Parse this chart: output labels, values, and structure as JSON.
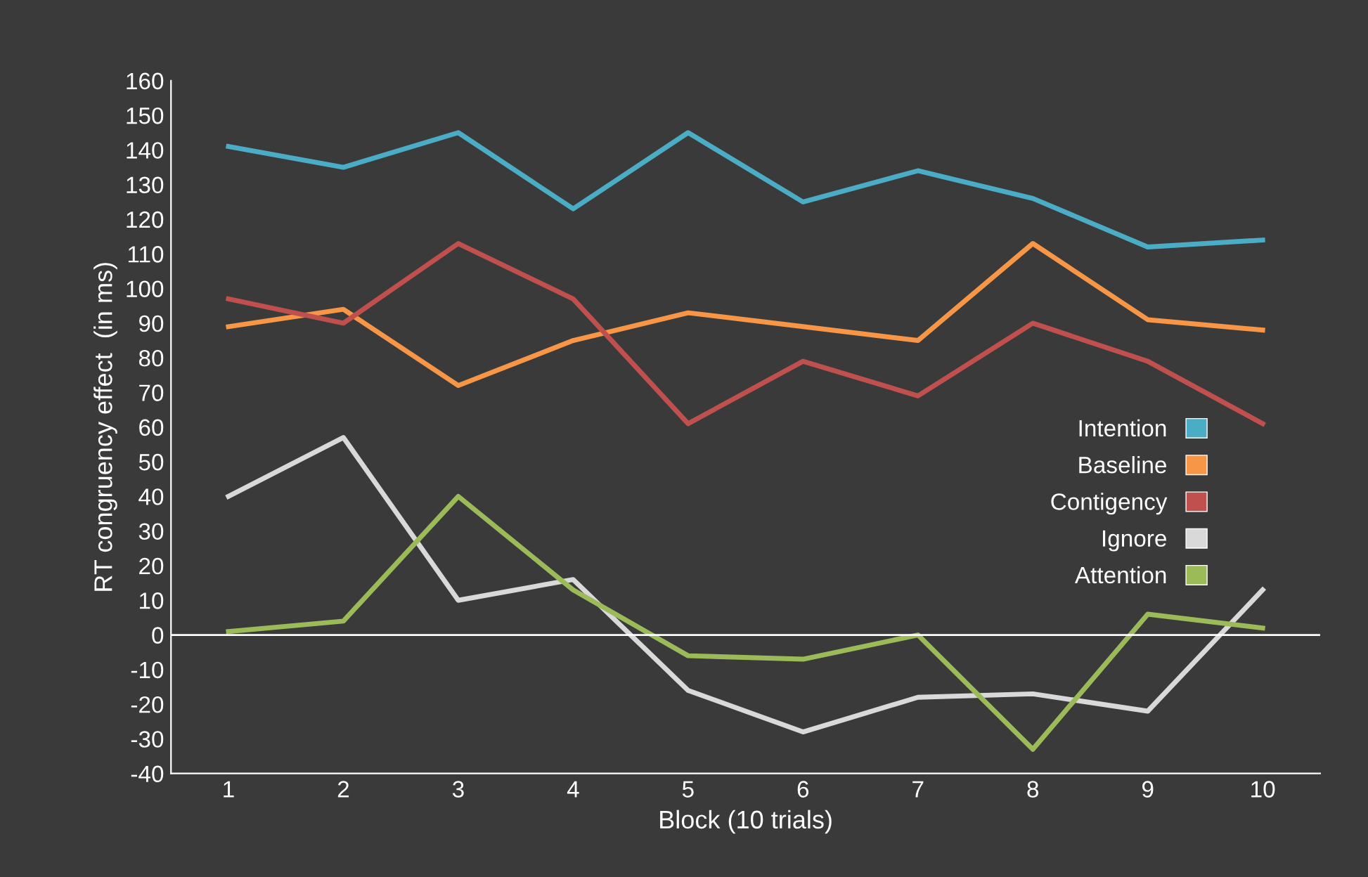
{
  "chart_data": {
    "type": "line",
    "xlabel": "Block (10 trials)",
    "ylabel": "RT congruency effect  (in ms)",
    "categories": [
      "1",
      "2",
      "3",
      "4",
      "5",
      "6",
      "7",
      "8",
      "9",
      "10"
    ],
    "series": [
      {
        "name": "Intention",
        "color": "#4bacc6",
        "values": [
          141,
          135,
          145,
          123,
          145,
          125,
          134,
          126,
          112,
          114
        ]
      },
      {
        "name": "Baseline",
        "color": "#f79646",
        "values": [
          89,
          94,
          72,
          85,
          93,
          89,
          85,
          113,
          91,
          88
        ]
      },
      {
        "name": "Contigency",
        "color": "#c0504d",
        "values": [
          97,
          90,
          113,
          97,
          61,
          79,
          69,
          90,
          79,
          61
        ]
      },
      {
        "name": "Ignore",
        "color": "#d9d9d9",
        "values": [
          40,
          57,
          10,
          16,
          -16,
          -28,
          -18,
          -17,
          -22,
          13
        ]
      },
      {
        "name": "Attention",
        "color": "#9bbb59",
        "values": [
          1,
          4,
          40,
          13,
          -6,
          -7,
          0,
          -33,
          6,
          2
        ]
      }
    ],
    "ylim": [
      -40,
      160
    ],
    "yticks": [
      -40,
      -30,
      -20,
      -10,
      0,
      10,
      20,
      30,
      40,
      50,
      60,
      70,
      80,
      90,
      100,
      110,
      120,
      130,
      140,
      150,
      160
    ],
    "ref_lines": [
      {
        "axis": "y",
        "value": 0,
        "color": "#ffffff"
      }
    ],
    "grid": false,
    "legend": "right",
    "marker": "none",
    "line_style": "solid"
  }
}
